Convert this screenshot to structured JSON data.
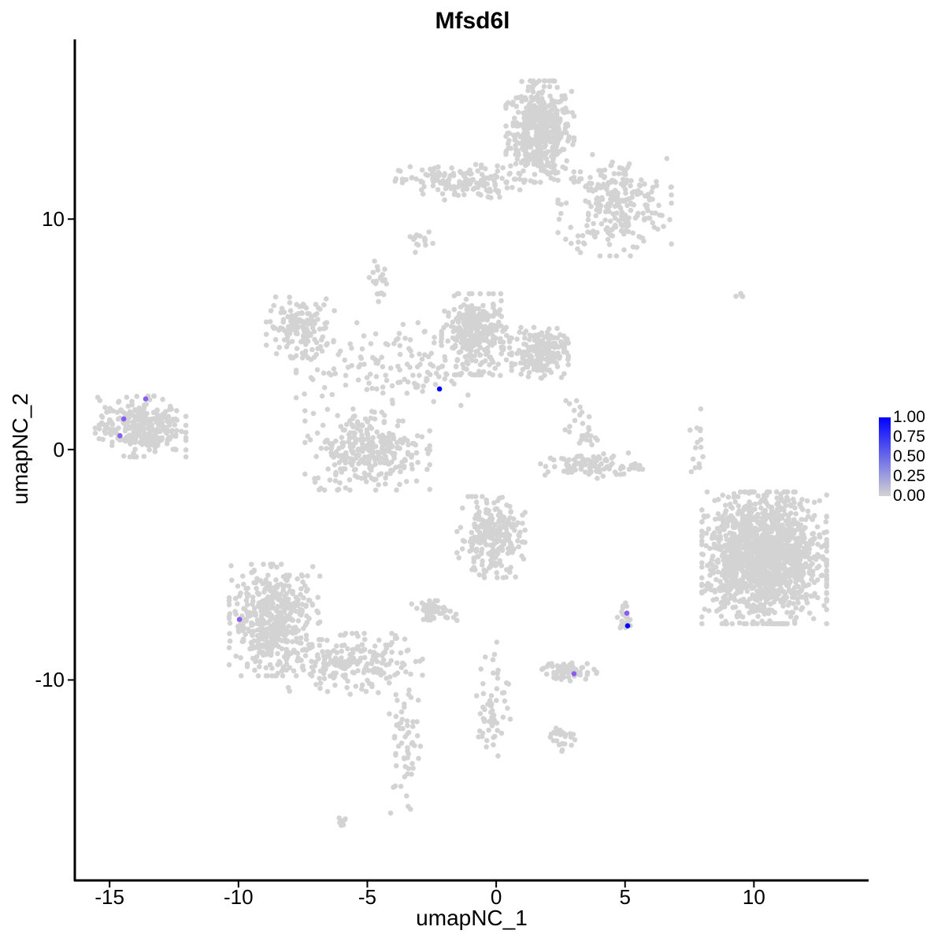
{
  "chart_data": {
    "type": "scatter",
    "title": "Mfsd6l",
    "xlabel": "umapNC_1",
    "ylabel": "umapNC_2",
    "xlim": [
      -16.35,
      14.45
    ],
    "ylim": [
      -18.7,
      17.8
    ],
    "x_ticks": [
      -15,
      -10,
      -5,
      0,
      5,
      10
    ],
    "y_ticks": [
      -10,
      0,
      10
    ],
    "x_tick_labels": [
      "-15",
      "-10",
      "-5",
      "0",
      "5",
      "10"
    ],
    "y_tick_labels": [
      "-10",
      "0",
      "10"
    ],
    "grid": false,
    "colors": {
      "low": "#d3d3d3",
      "high": "#0000ff"
    },
    "legend": {
      "position": "right",
      "labels": [
        "1.00",
        "0.75",
        "0.50",
        "0.25",
        "0.00"
      ],
      "range": [
        0,
        1
      ]
    },
    "background_clusters_approx": [
      {
        "center": [
          1.7,
          13.8
        ],
        "spread": [
          0.6,
          1.0
        ],
        "n": 500
      },
      {
        "center": [
          4.6,
          10.6
        ],
        "spread": [
          1.0,
          1.0
        ],
        "n": 250
      },
      {
        "center": [
          -1.5,
          11.6
        ],
        "spread": [
          1.1,
          0.35
        ],
        "n": 150
      },
      {
        "center": [
          -7.6,
          5.3
        ],
        "spread": [
          0.6,
          0.6
        ],
        "n": 150
      },
      {
        "center": [
          -0.8,
          5.0
        ],
        "spread": [
          0.6,
          0.8
        ],
        "n": 300
      },
      {
        "center": [
          1.7,
          4.2
        ],
        "spread": [
          0.5,
          0.5
        ],
        "n": 200
      },
      {
        "center": [
          -3.8,
          3.6
        ],
        "spread": [
          1.8,
          0.9
        ],
        "n": 150
      },
      {
        "center": [
          -5.0,
          0.0
        ],
        "spread": [
          1.1,
          0.8
        ],
        "n": 300
      },
      {
        "center": [
          3.7,
          -0.7
        ],
        "spread": [
          0.9,
          0.25
        ],
        "n": 100
      },
      {
        "center": [
          3.3,
          0.8
        ],
        "spread": [
          0.3,
          0.6
        ],
        "n": 30
      },
      {
        "center": [
          -13.8,
          1.0
        ],
        "spread": [
          0.8,
          0.6
        ],
        "n": 300
      },
      {
        "center": [
          10.4,
          -4.7
        ],
        "spread": [
          1.1,
          1.3
        ],
        "n": 1500
      },
      {
        "center": [
          -0.2,
          -3.8
        ],
        "spread": [
          0.6,
          0.8
        ],
        "n": 250
      },
      {
        "center": [
          -8.6,
          -7.4
        ],
        "spread": [
          0.8,
          1.1
        ],
        "n": 500
      },
      {
        "center": [
          -5.5,
          -9.3
        ],
        "spread": [
          1.2,
          0.6
        ],
        "n": 200
      },
      {
        "center": [
          -3.6,
          -13.0
        ],
        "spread": [
          0.3,
          1.5
        ],
        "n": 60
      },
      {
        "center": [
          -2.4,
          -7.0
        ],
        "spread": [
          0.4,
          0.2
        ],
        "n": 50
      },
      {
        "center": [
          2.8,
          -9.6
        ],
        "spread": [
          0.5,
          0.2
        ],
        "n": 60
      },
      {
        "center": [
          -0.1,
          -11.0
        ],
        "spread": [
          0.3,
          1.2
        ],
        "n": 60
      },
      {
        "center": [
          2.5,
          -12.5
        ],
        "spread": [
          0.3,
          0.3
        ],
        "n": 25
      },
      {
        "center": [
          5.0,
          -7.3
        ],
        "spread": [
          0.15,
          0.3
        ],
        "n": 20
      },
      {
        "center": [
          -6.0,
          -16.2
        ],
        "spread": [
          0.1,
          0.1
        ],
        "n": 8
      },
      {
        "center": [
          -2.9,
          9.0
        ],
        "spread": [
          0.2,
          0.2
        ],
        "n": 15
      },
      {
        "center": [
          -4.5,
          7.3
        ],
        "spread": [
          0.2,
          0.4
        ],
        "n": 20
      },
      {
        "center": [
          7.8,
          0.0
        ],
        "spread": [
          0.15,
          0.8
        ],
        "n": 15
      },
      {
        "center": [
          9.5,
          6.7
        ],
        "spread": [
          0.1,
          0.05
        ],
        "n": 4
      }
    ],
    "expressing_points": [
      {
        "x": -13.6,
        "y": 2.2,
        "value": 0.6
      },
      {
        "x": -14.45,
        "y": 1.33,
        "value": 0.6
      },
      {
        "x": -14.6,
        "y": 0.6,
        "value": 0.6
      },
      {
        "x": -9.96,
        "y": -7.37,
        "value": 0.6
      },
      {
        "x": 5.07,
        "y": -7.1,
        "value": 0.6
      },
      {
        "x": 3.02,
        "y": -9.73,
        "value": 0.6
      },
      {
        "x": -2.2,
        "y": 2.63,
        "value": 1.0
      },
      {
        "x": 5.1,
        "y": -7.65,
        "value": 1.0
      }
    ]
  }
}
